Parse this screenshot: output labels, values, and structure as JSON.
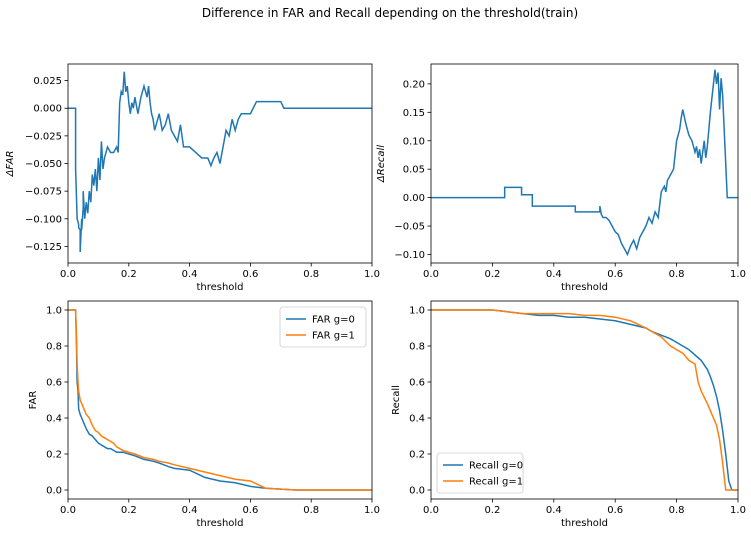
{
  "figure": {
    "title": "Difference in FAR and Recall depending on the threshold(train)"
  },
  "chart_data": [
    {
      "type": "line",
      "xlabel": "threshold",
      "ylabel": "ΔFAR",
      "xlim": [
        0,
        1
      ],
      "ylim": [
        -0.14,
        0.04
      ],
      "xticks": [
        "0.0",
        "0.2",
        "0.4",
        "0.6",
        "0.8",
        "1.0"
      ],
      "yticks": [
        "−0.125",
        "−0.100",
        "−0.075",
        "−0.050",
        "−0.025",
        "0.000",
        "0.025"
      ],
      "ytick_values": [
        -0.125,
        -0.1,
        -0.075,
        -0.05,
        -0.025,
        0.0,
        0.025
      ],
      "series": [
        {
          "color": "#1f77b4",
          "x": [
            0,
            0.025,
            0.025,
            0.03,
            0.035,
            0.035,
            0.04,
            0.04,
            0.045,
            0.045,
            0.05,
            0.05,
            0.055,
            0.06,
            0.065,
            0.07,
            0.075,
            0.08,
            0.085,
            0.09,
            0.095,
            0.1,
            0.105,
            0.11,
            0.115,
            0.12,
            0.125,
            0.13,
            0.14,
            0.15,
            0.16,
            0.165,
            0.17,
            0.175,
            0.18,
            0.185,
            0.19,
            0.195,
            0.2,
            0.205,
            0.21,
            0.215,
            0.22,
            0.23,
            0.24,
            0.25,
            0.26,
            0.265,
            0.27,
            0.275,
            0.28,
            0.285,
            0.29,
            0.3,
            0.31,
            0.32,
            0.33,
            0.34,
            0.35,
            0.36,
            0.37,
            0.38,
            0.4,
            0.42,
            0.44,
            0.46,
            0.47,
            0.48,
            0.49,
            0.5,
            0.51,
            0.52,
            0.53,
            0.54,
            0.55,
            0.56,
            0.57,
            0.6,
            0.62,
            0.65,
            0.7,
            0.71,
            0.8,
            0.9,
            1.0
          ],
          "y": [
            0,
            0,
            -0.055,
            -0.1,
            -0.105,
            -0.108,
            -0.11,
            -0.13,
            -0.1,
            -0.11,
            -0.09,
            -0.075,
            -0.1,
            -0.085,
            -0.095,
            -0.075,
            -0.085,
            -0.06,
            -0.07,
            -0.055,
            -0.075,
            -0.045,
            -0.065,
            -0.03,
            -0.055,
            -0.045,
            -0.04,
            -0.035,
            -0.04,
            -0.04,
            -0.035,
            -0.04,
            0.005,
            0.015,
            0.012,
            0.033,
            0.015,
            0.02,
            0.005,
            -0.005,
            0.005,
            0.0,
            0.01,
            -0.005,
            0.01,
            0.02,
            0.01,
            0.02,
            0.005,
            -0.005,
            -0.01,
            -0.02,
            -0.015,
            -0.005,
            -0.02,
            -0.015,
            -0.005,
            -0.02,
            -0.025,
            -0.03,
            -0.015,
            -0.035,
            -0.035,
            -0.04,
            -0.045,
            -0.045,
            -0.052,
            -0.045,
            -0.04,
            -0.05,
            -0.035,
            -0.02,
            -0.025,
            -0.01,
            -0.02,
            -0.01,
            -0.005,
            -0.005,
            0.006,
            0.006,
            0.006,
            0,
            0,
            0,
            0
          ]
        }
      ]
    },
    {
      "type": "line",
      "xlabel": "threshold",
      "ylabel": "ΔRecall",
      "xlim": [
        0,
        1
      ],
      "ylim": [
        -0.115,
        0.235
      ],
      "xticks": [
        "0.0",
        "0.2",
        "0.4",
        "0.6",
        "0.8",
        "1.0"
      ],
      "yticks": [
        "−0.10",
        "−0.05",
        "0.00",
        "0.05",
        "0.10",
        "0.15",
        "0.20"
      ],
      "ytick_values": [
        -0.1,
        -0.05,
        0.0,
        0.05,
        0.1,
        0.15,
        0.2
      ],
      "series": [
        {
          "color": "#1f77b4",
          "x": [
            0,
            0.24,
            0.24,
            0.295,
            0.295,
            0.33,
            0.33,
            0.47,
            0.47,
            0.55,
            0.55,
            0.555,
            0.56,
            0.57,
            0.58,
            0.6,
            0.61,
            0.62,
            0.63,
            0.64,
            0.65,
            0.66,
            0.67,
            0.68,
            0.69,
            0.7,
            0.71,
            0.72,
            0.73,
            0.74,
            0.75,
            0.76,
            0.765,
            0.77,
            0.78,
            0.79,
            0.8,
            0.81,
            0.815,
            0.82,
            0.83,
            0.84,
            0.85,
            0.86,
            0.865,
            0.87,
            0.875,
            0.88,
            0.885,
            0.89,
            0.895,
            0.9,
            0.905,
            0.91,
            0.915,
            0.92,
            0.925,
            0.93,
            0.935,
            0.94,
            0.945,
            0.95,
            0.955,
            0.96,
            0.965,
            0.97,
            1.0
          ],
          "y": [
            0,
            0,
            0.018,
            0.018,
            0.005,
            0.005,
            -0.015,
            -0.015,
            -0.025,
            -0.025,
            -0.015,
            -0.03,
            -0.035,
            -0.035,
            -0.04,
            -0.06,
            -0.065,
            -0.08,
            -0.09,
            -0.1,
            -0.085,
            -0.075,
            -0.09,
            -0.07,
            -0.06,
            -0.05,
            -0.035,
            -0.045,
            -0.025,
            -0.035,
            0.01,
            0.02,
            0.01,
            0.03,
            0.04,
            0.05,
            0.1,
            0.12,
            0.14,
            0.155,
            0.13,
            0.11,
            0.1,
            0.08,
            0.09,
            0.07,
            0.085,
            0.06,
            0.08,
            0.1,
            0.07,
            0.09,
            0.12,
            0.15,
            0.175,
            0.2,
            0.225,
            0.2,
            0.22,
            0.155,
            0.21,
            0.18,
            0.12,
            0.06,
            0.0,
            0.0,
            0.0
          ]
        }
      ]
    },
    {
      "type": "line",
      "xlabel": "threshold",
      "ylabel": "FAR",
      "xlim": [
        0,
        1
      ],
      "ylim": [
        -0.05,
        1.05
      ],
      "xticks": [
        "0.0",
        "0.2",
        "0.4",
        "0.6",
        "0.8",
        "1.0"
      ],
      "yticks": [
        "0.0",
        "0.2",
        "0.4",
        "0.6",
        "0.8",
        "1.0"
      ],
      "ytick_values": [
        0,
        0.2,
        0.4,
        0.6,
        0.8,
        1.0
      ],
      "legend_position": "upper right",
      "series": [
        {
          "name": "FAR g=0",
          "color": "#1f77b4",
          "x": [
            0,
            0.025,
            0.028,
            0.03,
            0.033,
            0.035,
            0.04,
            0.045,
            0.05,
            0.055,
            0.06,
            0.07,
            0.08,
            0.09,
            0.1,
            0.11,
            0.12,
            0.13,
            0.14,
            0.15,
            0.16,
            0.18,
            0.2,
            0.22,
            0.25,
            0.28,
            0.3,
            0.33,
            0.35,
            0.4,
            0.45,
            0.5,
            0.55,
            0.6,
            0.65,
            0.7,
            0.75,
            0.8,
            0.9,
            1.0
          ],
          "y": [
            1.0,
            1.0,
            0.8,
            0.6,
            0.55,
            0.45,
            0.42,
            0.4,
            0.38,
            0.36,
            0.34,
            0.31,
            0.3,
            0.28,
            0.26,
            0.25,
            0.24,
            0.23,
            0.23,
            0.22,
            0.21,
            0.21,
            0.2,
            0.19,
            0.17,
            0.16,
            0.15,
            0.13,
            0.12,
            0.11,
            0.07,
            0.05,
            0.04,
            0.02,
            0.01,
            0.005,
            0.0,
            0.0,
            0.0,
            0.0
          ]
        },
        {
          "name": "FAR g=1",
          "color": "#ff7f0e",
          "x": [
            0,
            0.025,
            0.028,
            0.03,
            0.033,
            0.035,
            0.04,
            0.045,
            0.05,
            0.055,
            0.06,
            0.07,
            0.08,
            0.09,
            0.1,
            0.11,
            0.12,
            0.13,
            0.14,
            0.15,
            0.16,
            0.18,
            0.2,
            0.22,
            0.25,
            0.28,
            0.3,
            0.33,
            0.35,
            0.4,
            0.45,
            0.5,
            0.55,
            0.6,
            0.65,
            0.7,
            0.75,
            0.8,
            0.9,
            1.0
          ],
          "y": [
            1.0,
            1.0,
            0.85,
            0.7,
            0.6,
            0.55,
            0.5,
            0.48,
            0.46,
            0.44,
            0.42,
            0.4,
            0.36,
            0.33,
            0.32,
            0.3,
            0.29,
            0.28,
            0.27,
            0.26,
            0.24,
            0.22,
            0.21,
            0.2,
            0.18,
            0.17,
            0.16,
            0.15,
            0.14,
            0.12,
            0.1,
            0.08,
            0.06,
            0.05,
            0.01,
            0.005,
            0.0,
            0.0,
            0.0,
            0.0
          ]
        }
      ]
    },
    {
      "type": "line",
      "xlabel": "threshold",
      "ylabel": "Recall",
      "xlim": [
        0,
        1
      ],
      "ylim": [
        -0.05,
        1.05
      ],
      "xticks": [
        "0.0",
        "0.2",
        "0.4",
        "0.6",
        "0.8",
        "1.0"
      ],
      "yticks": [
        "0.0",
        "0.2",
        "0.4",
        "0.6",
        "0.8",
        "1.0"
      ],
      "ytick_values": [
        0,
        0.2,
        0.4,
        0.6,
        0.8,
        1.0
      ],
      "legend_position": "lower left",
      "series": [
        {
          "name": "Recall g=0",
          "color": "#1f77b4",
          "x": [
            0,
            0.2,
            0.25,
            0.3,
            0.35,
            0.4,
            0.45,
            0.5,
            0.55,
            0.6,
            0.65,
            0.7,
            0.72,
            0.75,
            0.78,
            0.8,
            0.82,
            0.84,
            0.86,
            0.88,
            0.9,
            0.91,
            0.92,
            0.93,
            0.94,
            0.95,
            0.96,
            0.97,
            0.98,
            1.0
          ],
          "y": [
            1.0,
            1.0,
            0.99,
            0.98,
            0.97,
            0.97,
            0.96,
            0.96,
            0.95,
            0.94,
            0.92,
            0.9,
            0.88,
            0.86,
            0.84,
            0.82,
            0.8,
            0.78,
            0.75,
            0.72,
            0.67,
            0.63,
            0.58,
            0.52,
            0.44,
            0.33,
            0.2,
            0.05,
            0.0,
            0.0
          ]
        },
        {
          "name": "Recall g=1",
          "color": "#ff7f0e",
          "x": [
            0,
            0.2,
            0.25,
            0.3,
            0.35,
            0.4,
            0.45,
            0.5,
            0.55,
            0.6,
            0.65,
            0.7,
            0.72,
            0.75,
            0.78,
            0.8,
            0.82,
            0.84,
            0.86,
            0.87,
            0.88,
            0.9,
            0.91,
            0.92,
            0.93,
            0.94,
            0.95,
            0.96,
            0.97,
            1.0
          ],
          "y": [
            1.0,
            1.0,
            0.99,
            0.98,
            0.98,
            0.98,
            0.98,
            0.97,
            0.97,
            0.96,
            0.94,
            0.9,
            0.88,
            0.85,
            0.8,
            0.78,
            0.76,
            0.72,
            0.7,
            0.6,
            0.55,
            0.48,
            0.44,
            0.4,
            0.36,
            0.28,
            0.15,
            0.0,
            0.0,
            0.0
          ]
        }
      ]
    }
  ]
}
